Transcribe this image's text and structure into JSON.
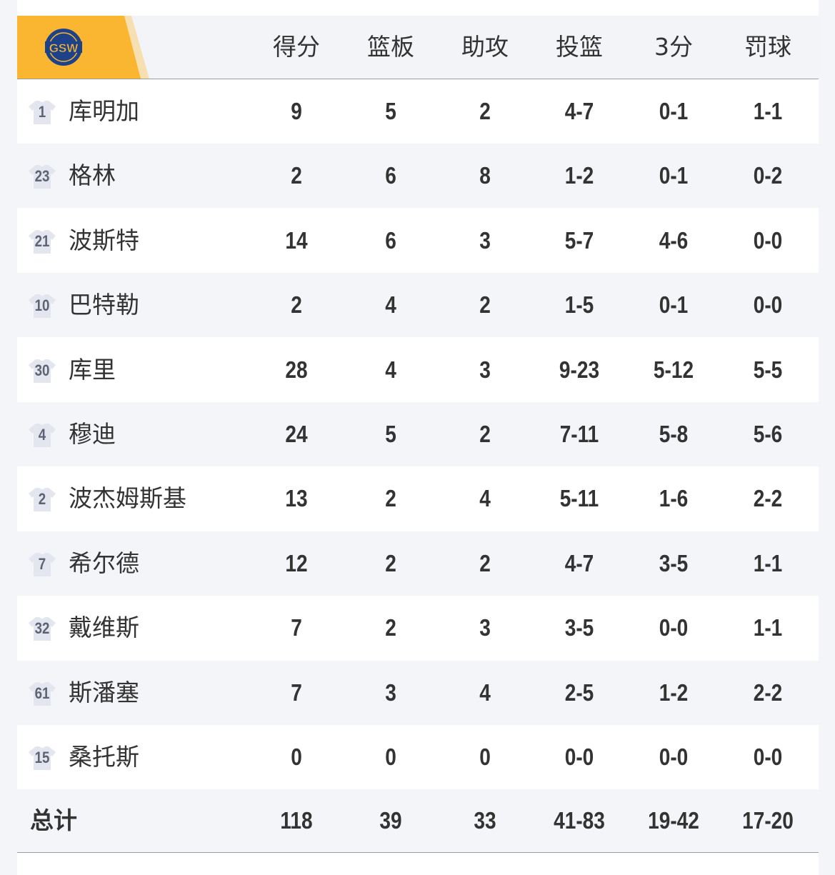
{
  "team": {
    "abbr": "GSW",
    "brand_color": "#fbb631",
    "logo_color": "#1d428a"
  },
  "columns": [
    "得分",
    "篮板",
    "助攻",
    "投篮",
    "3分",
    "罚球"
  ],
  "players": [
    {
      "number": "1",
      "name": "库明加",
      "stats": [
        "9",
        "5",
        "2",
        "4-7",
        "0-1",
        "1-1"
      ]
    },
    {
      "number": "23",
      "name": "格林",
      "stats": [
        "2",
        "6",
        "8",
        "1-2",
        "0-1",
        "0-2"
      ]
    },
    {
      "number": "21",
      "name": "波斯特",
      "stats": [
        "14",
        "6",
        "3",
        "5-7",
        "4-6",
        "0-0"
      ]
    },
    {
      "number": "10",
      "name": "巴特勒",
      "stats": [
        "2",
        "4",
        "2",
        "1-5",
        "0-1",
        "0-0"
      ]
    },
    {
      "number": "30",
      "name": "库里",
      "stats": [
        "28",
        "4",
        "3",
        "9-23",
        "5-12",
        "5-5"
      ]
    },
    {
      "number": "4",
      "name": "穆迪",
      "stats": [
        "24",
        "5",
        "2",
        "7-11",
        "5-8",
        "5-6"
      ]
    },
    {
      "number": "2",
      "name": "波杰姆斯基",
      "stats": [
        "13",
        "2",
        "4",
        "5-11",
        "1-6",
        "2-2"
      ]
    },
    {
      "number": "7",
      "name": "希尔德",
      "stats": [
        "12",
        "2",
        "2",
        "4-7",
        "3-5",
        "1-1"
      ]
    },
    {
      "number": "32",
      "name": "戴维斯",
      "stats": [
        "7",
        "2",
        "3",
        "3-5",
        "0-0",
        "1-1"
      ]
    },
    {
      "number": "61",
      "name": "斯潘塞",
      "stats": [
        "7",
        "3",
        "4",
        "2-5",
        "1-2",
        "2-2"
      ]
    },
    {
      "number": "15",
      "name": "桑托斯",
      "stats": [
        "0",
        "0",
        "0",
        "0-0",
        "0-0",
        "0-0"
      ]
    }
  ],
  "total": {
    "label": "总计",
    "stats": [
      "118",
      "39",
      "33",
      "41-83",
      "19-42",
      "17-20"
    ]
  }
}
